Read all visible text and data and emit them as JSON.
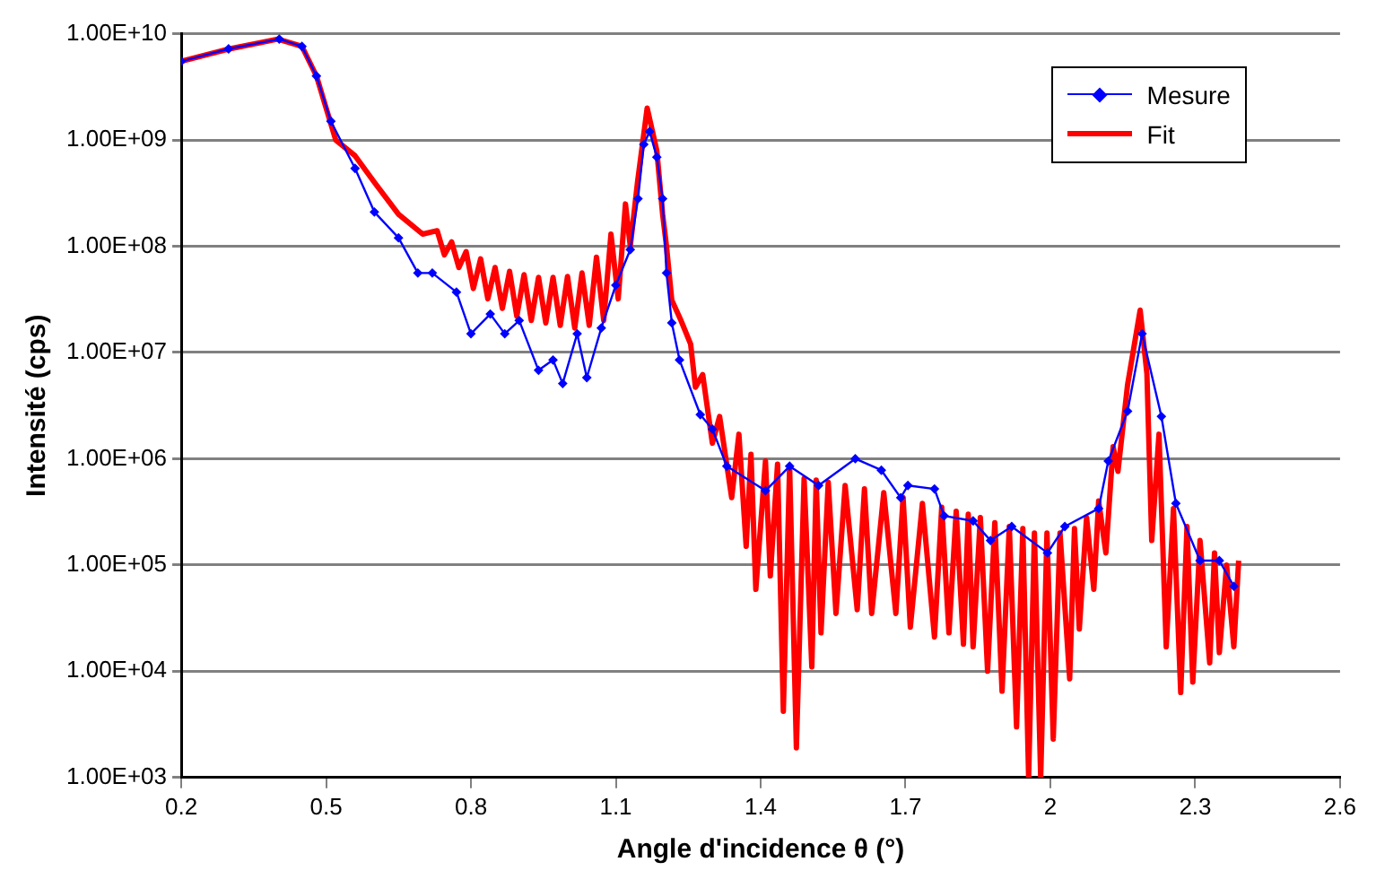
{
  "chart_data": {
    "type": "line",
    "xlabel": "Angle d'incidence θ (°)",
    "ylabel": "Intensité (cps)",
    "log": "y",
    "grid": "y",
    "legend": "top right",
    "xlim": [
      0.2,
      2.6
    ],
    "xticks": [
      0.2,
      0.5,
      0.8,
      1.1,
      1.4,
      1.7,
      2,
      2.3,
      2.6
    ],
    "ylim": [
      1000,
      10000000000
    ],
    "yticks": [
      {
        "value": 1000,
        "label": "1.00E+03"
      },
      {
        "value": 10000,
        "label": "1.00E+04"
      },
      {
        "value": 100000,
        "label": "1.00E+05"
      },
      {
        "value": 1000000,
        "label": "1.00E+06"
      },
      {
        "value": 10000000,
        "label": "1.00E+07"
      },
      {
        "value": 100000000,
        "label": "1.00E+08"
      },
      {
        "value": 1000000000,
        "label": "1.00E+09"
      },
      {
        "value": 10000000000,
        "label": "1.00E+10"
      }
    ],
    "series": [
      {
        "name": "Mesure",
        "color": "#0000ff",
        "marker": "diamond",
        "line_style": "solid",
        "x": [
          0.2,
          0.298,
          0.403,
          0.45,
          0.48,
          0.51,
          0.56,
          0.6,
          0.65,
          0.69,
          0.72,
          0.77,
          0.8,
          0.84,
          0.87,
          0.9,
          0.94,
          0.97,
          0.99,
          1.02,
          1.04,
          1.07,
          1.1,
          1.13,
          1.146,
          1.158,
          1.17,
          1.185,
          1.197,
          1.205,
          1.216,
          1.232,
          1.275,
          1.3,
          1.33,
          1.41,
          1.46,
          1.52,
          1.596,
          1.65,
          1.69,
          1.705,
          1.76,
          1.78,
          1.84,
          1.876,
          1.92,
          1.994,
          2.03,
          2.1,
          2.12,
          2.16,
          2.19,
          2.23,
          2.26,
          2.31,
          2.35,
          2.38
        ],
        "values": [
          5500000000.0,
          7200000000.0,
          8900000000.0,
          7600000000.0,
          4000000000.0,
          1500000000.0,
          540000000.0,
          210000000.0,
          120000000.0,
          56000000.0,
          56000000.0,
          37000000.0,
          15000000.0,
          23000000.0,
          15000000.0,
          20000000.0,
          6800000.0,
          8500000.0,
          5100000.0,
          15000000.0,
          5800000.0,
          17000000.0,
          43000000.0,
          93000000.0,
          280000000.0,
          910000000.0,
          1200000000.0,
          690000000.0,
          280000000.0,
          56000000.0,
          19000000.0,
          8500000.0,
          2600000.0,
          1900000.0,
          850000.0,
          500000.0,
          850000.0,
          560000.0,
          1000000.0,
          780000.0,
          430000.0,
          560000.0,
          520000.0,
          290000.0,
          260000.0,
          170000.0,
          230000.0,
          130000.0,
          230000.0,
          340000.0,
          950000.0,
          2800000.0,
          15000000.0,
          2500000.0,
          380000.0,
          110000.0,
          110000.0,
          63000.0
        ]
      },
      {
        "name": "Fit",
        "color": "#ff0000",
        "marker": "none",
        "line_style": "solid",
        "x": [
          0.2,
          0.3,
          0.4,
          0.45,
          0.48,
          0.52,
          0.56,
          0.6,
          0.65,
          0.7,
          0.73,
          0.745,
          0.76,
          0.775,
          0.79,
          0.805,
          0.82,
          0.835,
          0.85,
          0.865,
          0.88,
          0.895,
          0.91,
          0.925,
          0.94,
          0.955,
          0.97,
          0.985,
          1.0,
          1.015,
          1.03,
          1.045,
          1.06,
          1.075,
          1.09,
          1.105,
          1.12,
          1.13,
          1.145,
          1.165,
          1.185,
          1.197,
          1.205,
          1.216,
          1.235,
          1.255,
          1.265,
          1.28,
          1.3,
          1.315,
          1.34,
          1.355,
          1.37,
          1.38,
          1.39,
          1.41,
          1.42,
          1.435,
          1.447,
          1.46,
          1.474,
          1.49,
          1.506,
          1.515,
          1.525,
          1.54,
          1.556,
          1.575,
          1.6,
          1.615,
          1.63,
          1.655,
          1.68,
          1.695,
          1.71,
          1.735,
          1.76,
          1.775,
          1.79,
          1.805,
          1.82,
          1.83,
          1.84,
          1.855,
          1.87,
          1.885,
          1.9,
          1.915,
          1.93,
          1.943,
          1.955,
          1.967,
          1.98,
          1.993,
          2.006,
          2.02,
          2.04,
          2.05,
          2.06,
          2.075,
          2.09,
          2.1,
          2.115,
          2.13,
          2.14,
          2.16,
          2.186,
          2.2,
          2.21,
          2.225,
          2.24,
          2.255,
          2.27,
          2.283,
          2.295,
          2.31,
          2.33,
          2.34,
          2.35,
          2.365,
          2.38,
          2.39
        ],
        "values": [
          5500000000.0,
          7200000000.0,
          8900000000.0,
          7600000000.0,
          4000000000.0,
          1000000000.0,
          710000000.0,
          400000000.0,
          200000000.0,
          130000000.0,
          140000000.0,
          83000000.0,
          110000000.0,
          63000000.0,
          89000000.0,
          40000000.0,
          76000000.0,
          32000000.0,
          63000000.0,
          26000000.0,
          58000000.0,
          22000000.0,
          54000000.0,
          20000000.0,
          51000000.0,
          19000000.0,
          51000000.0,
          18000000.0,
          52000000.0,
          17000000.0,
          56000000.0,
          18000000.0,
          79000000.0,
          20000000.0,
          130000000.0,
          32000000.0,
          250000000.0,
          100000000.0,
          400000000.0,
          2000000000.0,
          790000000.0,
          200000000.0,
          100000000.0,
          31000000.0,
          20000000.0,
          12000000.0,
          4700000.0,
          6200000.0,
          1400000.0,
          2500000.0,
          430000.0,
          1700000.0,
          150000.0,
          1100000.0,
          59000.0,
          950000.0,
          79000.0,
          890000.0,
          4200.0,
          850000.0,
          1900.0,
          650000.0,
          11000.0,
          630000.0,
          23000.0,
          600000.0,
          35000.0,
          560000.0,
          38000.0,
          520000.0,
          35000.0,
          480000.0,
          35000.0,
          430000.0,
          26000.0,
          380000.0,
          21000.0,
          350000.0,
          23000.0,
          320000.0,
          18000.0,
          300000.0,
          17000.0,
          280000.0,
          10000.0,
          250000.0,
          6500.0,
          230000.0,
          3000.0,
          220000.0,
          1000.0,
          200000.0,
          1000.0,
          200000.0,
          2300.0,
          200000.0,
          8500.0,
          220000.0,
          25000.0,
          280000.0,
          59000.0,
          400000.0,
          130000.0,
          1300000.0,
          760000.0,
          5000000.0,
          25000000.0,
          6300000.0,
          170000.0,
          1700000.0,
          17000.0,
          340000.0,
          6300.0,
          230000.0,
          7900.0,
          170000.0,
          12000.0,
          130000.0,
          15000.0,
          100000.0,
          17000.0,
          110000.0
        ]
      }
    ]
  }
}
